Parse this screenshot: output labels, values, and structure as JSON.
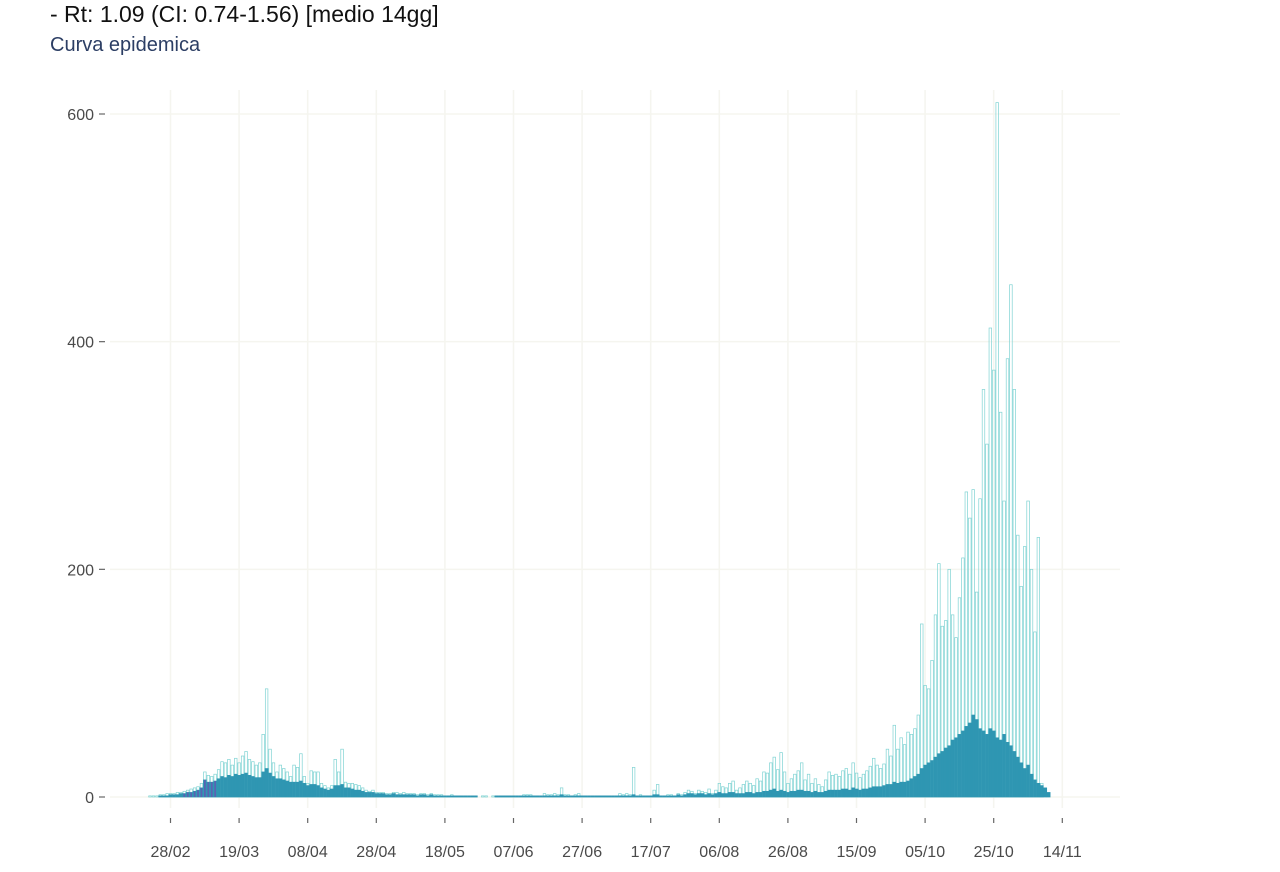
{
  "header": {
    "rt_text": "- Rt: 1.09 (CI: 0.74-1.56) [medio 14gg]",
    "subtitle_link": "Curva epidemica"
  },
  "colors": {
    "total_bars": "#7fd3d3",
    "positive_bars": "#2f96b2",
    "early_bars": "#5a62b3",
    "grid": "#f5f5ef",
    "tick_text": "#4a4a4a"
  },
  "chart_data": {
    "type": "bar",
    "start_date": "2020-02-24",
    "xlabel": "",
    "ylabel": "",
    "ylim": [
      0,
      610
    ],
    "y_ticks": [
      0,
      200,
      400,
      600
    ],
    "x_tick_labels": [
      "28/02",
      "19/03",
      "08/04",
      "28/04",
      "18/05",
      "07/06",
      "27/06",
      "17/07",
      "06/08",
      "26/08",
      "15/09",
      "05/10",
      "25/10",
      "14/11"
    ],
    "grid": true,
    "legend": "none",
    "series": [
      {
        "color": "#7fd3d3",
        "values": [
          1,
          1,
          1,
          2,
          2,
          3,
          3,
          3,
          4,
          4,
          5,
          6,
          7,
          8,
          9,
          12,
          22,
          19,
          18,
          20,
          24,
          31,
          30,
          33,
          28,
          34,
          30,
          36,
          40,
          33,
          31,
          28,
          30,
          55,
          95,
          42,
          30,
          22,
          28,
          25,
          22,
          18,
          28,
          26,
          38,
          18,
          12,
          23,
          22,
          22,
          12,
          10,
          8,
          10,
          33,
          22,
          42,
          13,
          12,
          12,
          11,
          10,
          8,
          6,
          5,
          6,
          4,
          4,
          4,
          3,
          3,
          4,
          4,
          3,
          4,
          3,
          3,
          3,
          2,
          3,
          3,
          2,
          3,
          2,
          2,
          2,
          1,
          1,
          2,
          1,
          1,
          1,
          1,
          1,
          1,
          1,
          0,
          1,
          1,
          0,
          1,
          1,
          1,
          1,
          1,
          1,
          1,
          1,
          1,
          2,
          2,
          2,
          1,
          1,
          1,
          3,
          2,
          2,
          3,
          2,
          8,
          2,
          2,
          1,
          2,
          3,
          1,
          1,
          1,
          1,
          1,
          1,
          1,
          1,
          1,
          1,
          1,
          3,
          2,
          3,
          2,
          26,
          1,
          2,
          1,
          1,
          1,
          6,
          11,
          1,
          1,
          2,
          2,
          1,
          3,
          2,
          4,
          6,
          5,
          3,
          6,
          5,
          4,
          7,
          3,
          6,
          12,
          9,
          8,
          12,
          14,
          6,
          8,
          11,
          14,
          12,
          10,
          16,
          14,
          22,
          21,
          30,
          35,
          24,
          39,
          22,
          12,
          16,
          20,
          23,
          30,
          15,
          20,
          12,
          16,
          11,
          9,
          15,
          22,
          19,
          20,
          18,
          23,
          25,
          20,
          30,
          21,
          17,
          20,
          23,
          27,
          34,
          28,
          25,
          29,
          42,
          36,
          63,
          42,
          52,
          46,
          57,
          55,
          60,
          72,
          152,
          98,
          95,
          120,
          160,
          205,
          150,
          155,
          200,
          160,
          140,
          175,
          210,
          268,
          245,
          270,
          180,
          262,
          358,
          310,
          412,
          375,
          610,
          338,
          260,
          385,
          450,
          358,
          230,
          185,
          220,
          260,
          200,
          145,
          228,
          12
        ]
      },
      {
        "color": "#2f96b2",
        "values": [
          0,
          0,
          0,
          1,
          1,
          1,
          2,
          2,
          2,
          3,
          3,
          4,
          4,
          5,
          6,
          8,
          15,
          13,
          13,
          14,
          16,
          18,
          17,
          19,
          18,
          20,
          19,
          20,
          21,
          19,
          18,
          17,
          17,
          22,
          25,
          21,
          18,
          16,
          16,
          15,
          14,
          13,
          13,
          13,
          14,
          12,
          10,
          11,
          11,
          10,
          8,
          7,
          6,
          7,
          10,
          10,
          11,
          8,
          8,
          7,
          6,
          6,
          5,
          4,
          4,
          4,
          3,
          3,
          3,
          2,
          2,
          3,
          2,
          2,
          2,
          2,
          2,
          2,
          1,
          2,
          2,
          1,
          2,
          1,
          1,
          1,
          1,
          1,
          1,
          1,
          1,
          1,
          1,
          1,
          1,
          1,
          0,
          0,
          0,
          0,
          0,
          1,
          1,
          1,
          1,
          1,
          1,
          1,
          1,
          1,
          1,
          1,
          1,
          1,
          1,
          1,
          1,
          1,
          1,
          1,
          2,
          1,
          1,
          1,
          1,
          1,
          1,
          1,
          1,
          1,
          1,
          1,
          1,
          1,
          1,
          1,
          1,
          1,
          1,
          1,
          1,
          2,
          1,
          1,
          1,
          1,
          1,
          2,
          2,
          1,
          1,
          1,
          1,
          1,
          2,
          1,
          2,
          3,
          3,
          2,
          3,
          3,
          2,
          3,
          2,
          3,
          4,
          3,
          3,
          4,
          4,
          3,
          3,
          3,
          4,
          4,
          3,
          4,
          4,
          5,
          5,
          6,
          7,
          5,
          6,
          5,
          4,
          5,
          5,
          6,
          6,
          5,
          5,
          4,
          5,
          4,
          4,
          5,
          6,
          6,
          6,
          6,
          7,
          7,
          6,
          8,
          7,
          6,
          7,
          7,
          8,
          9,
          9,
          9,
          10,
          11,
          11,
          13,
          12,
          13,
          13,
          14,
          16,
          18,
          20,
          25,
          28,
          30,
          32,
          35,
          38,
          40,
          43,
          45,
          50,
          52,
          55,
          58,
          62,
          65,
          72,
          68,
          60,
          58,
          55,
          60,
          58,
          52,
          50,
          55,
          48,
          45,
          40,
          35,
          30,
          25,
          28,
          20,
          15,
          12,
          10,
          8,
          4
        ]
      }
    ]
  }
}
